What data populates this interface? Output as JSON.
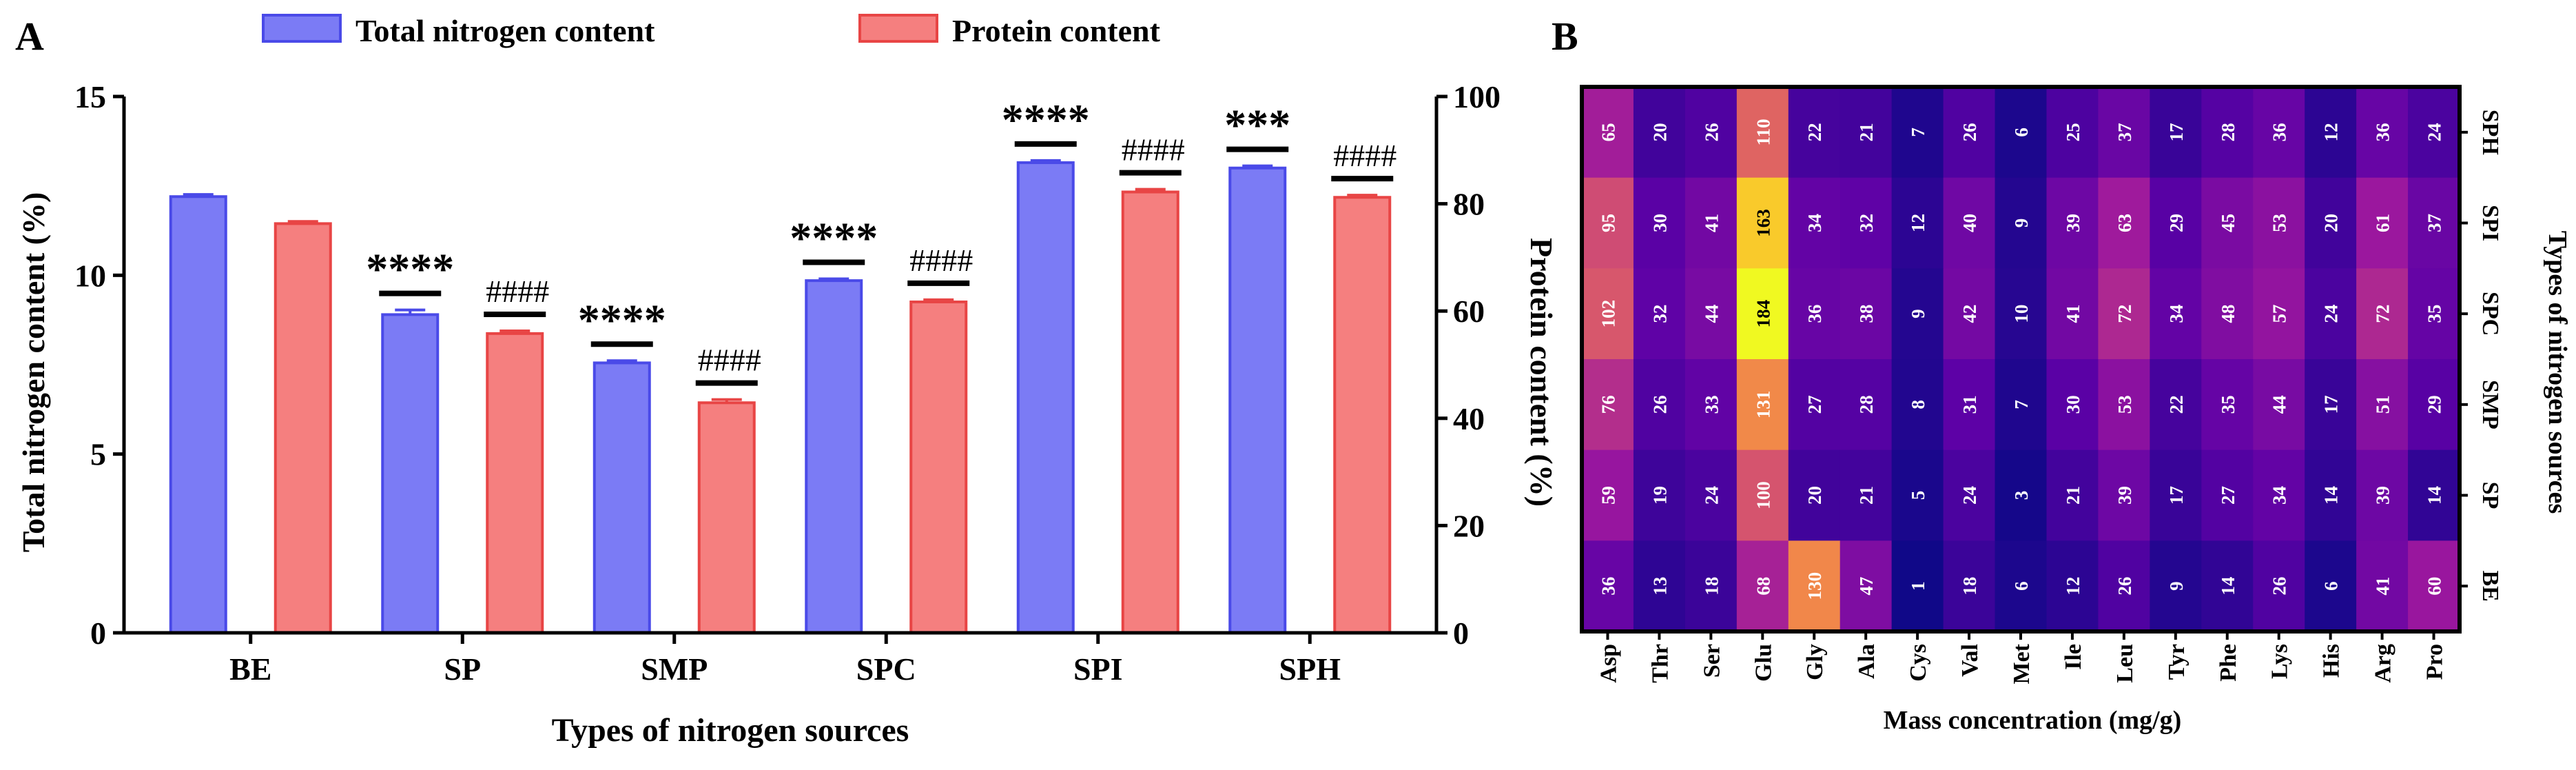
{
  "panel_labels": {
    "a": "A",
    "b": "B"
  },
  "chart_data": [
    {
      "type": "bar",
      "categories": [
        "BE",
        "SP",
        "SMP",
        "SPC",
        "SPI",
        "SPH"
      ],
      "xlabel": "Types of nitrogen sources",
      "ylabel": "Total nitrogen content (%)",
      "y2label": "Protein content (%)",
      "ylim": [
        0,
        15
      ],
      "y2lim": [
        0,
        100
      ],
      "yticks": [
        "0",
        "5",
        "10",
        "15"
      ],
      "y2ticks": [
        "0",
        "20",
        "40",
        "60",
        "80",
        "100"
      ],
      "legend_position": "top",
      "series": [
        {
          "name": "Total nitrogen content",
          "axis": "left",
          "color": "#7b7bf5",
          "edge": "#4a4ae8",
          "values": [
            12.2,
            8.9,
            7.55,
            9.85,
            13.15,
            13.0
          ],
          "errors": [
            0.06,
            0.13,
            0.06,
            0.05,
            0.06,
            0.06
          ],
          "sig": [
            "",
            "****",
            "****",
            "****",
            "****",
            "***"
          ]
        },
        {
          "name": "Protein content",
          "axis": "right",
          "color": "#f57f7f",
          "edge": "#e84545",
          "values": [
            76.3,
            55.8,
            42.9,
            61.7,
            82.2,
            81.2
          ],
          "errors": [
            0.4,
            0.5,
            0.6,
            0.4,
            0.5,
            0.4
          ],
          "sig": [
            "",
            "####",
            "####",
            "####",
            "####",
            "####"
          ]
        }
      ]
    },
    {
      "type": "heatmap",
      "xlabel": "Mass concentration (mg/g)",
      "ylabel": "Types of nitrogen sources",
      "columns": [
        "Asp",
        "Thr",
        "Ser",
        "Glu",
        "Gly",
        "Ala",
        "Cys",
        "Val",
        "Met",
        "Ile",
        "Leu",
        "Tyr",
        "Phe",
        "Lys",
        "His",
        "Arg",
        "Pro"
      ],
      "rows": [
        "SPH",
        "SPI",
        "SPC",
        "SMP",
        "SP",
        "BE"
      ],
      "values": [
        [
          65,
          20,
          26,
          110,
          22,
          21,
          7,
          26,
          6,
          25,
          37,
          17,
          28,
          36,
          12,
          36,
          24
        ],
        [
          95,
          30,
          41,
          163,
          34,
          32,
          12,
          40,
          9,
          39,
          63,
          29,
          45,
          53,
          20,
          61,
          37
        ],
        [
          102,
          32,
          44,
          184,
          36,
          38,
          9,
          42,
          10,
          41,
          72,
          34,
          48,
          57,
          24,
          72,
          35
        ],
        [
          76,
          26,
          33,
          131,
          27,
          28,
          8,
          31,
          7,
          30,
          53,
          22,
          35,
          44,
          17,
          51,
          29
        ],
        [
          59,
          19,
          24,
          100,
          20,
          21,
          5,
          24,
          3,
          21,
          39,
          17,
          27,
          34,
          14,
          39,
          14
        ],
        [
          36,
          13,
          18,
          68,
          130,
          47,
          1,
          18,
          6,
          12,
          26,
          9,
          14,
          26,
          6,
          41,
          60
        ]
      ],
      "color_scale": [
        "#0d0887",
        "#5c01a6",
        "#9c179e",
        "#cc4778",
        "#ed7953",
        "#fdb42f",
        "#f0f921"
      ],
      "value_range": [
        0,
        184
      ]
    }
  ]
}
